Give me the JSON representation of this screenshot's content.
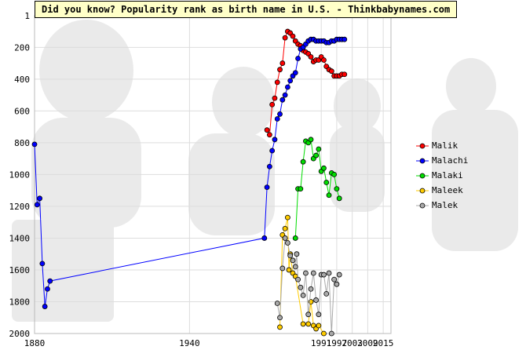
{
  "chart_data": {
    "type": "line",
    "title": "Did you know? Popularity rank as birth name in U.S. - Thinkbabynames.com",
    "xlabel": "",
    "ylabel": "",
    "xlim": [
      1880,
      2018
    ],
    "ylim": [
      2000,
      1
    ],
    "y_inverted": true,
    "grid": true,
    "x_ticks": [
      {
        "value": 1880,
        "label": "1880"
      },
      {
        "value": 1940,
        "label": "1940"
      },
      {
        "value": 1991,
        "label": "1991"
      },
      {
        "value": 1997,
        "label": "1997"
      },
      {
        "value": 2003,
        "label": "2003"
      },
      {
        "value": 2009,
        "label": "2009"
      },
      {
        "value": 2015,
        "label": "2015"
      }
    ],
    "y_ticks": [
      {
        "value": 1,
        "label": "1"
      },
      {
        "value": 200,
        "label": "200"
      },
      {
        "value": 400,
        "label": "400"
      },
      {
        "value": 600,
        "label": "600"
      },
      {
        "value": 800,
        "label": "800"
      },
      {
        "value": 1000,
        "label": "1000"
      },
      {
        "value": 1200,
        "label": "1200"
      },
      {
        "value": 1400,
        "label": "1400"
      },
      {
        "value": 1600,
        "label": "1600"
      },
      {
        "value": 1800,
        "label": "1800"
      },
      {
        "value": 2000,
        "label": "2000"
      }
    ],
    "legend_position": "right",
    "series": [
      {
        "name": "Malik",
        "color": "#ff0000",
        "points": [
          [
            1970,
            720
          ],
          [
            1971,
            750
          ],
          [
            1972,
            560
          ],
          [
            1973,
            520
          ],
          [
            1974,
            420
          ],
          [
            1975,
            340
          ],
          [
            1976,
            300
          ],
          [
            1977,
            140
          ],
          [
            1978,
            100
          ],
          [
            1979,
            110
          ],
          [
            1980,
            130
          ],
          [
            1981,
            160
          ],
          [
            1982,
            180
          ],
          [
            1983,
            190
          ],
          [
            1984,
            220
          ],
          [
            1985,
            230
          ],
          [
            1986,
            240
          ],
          [
            1987,
            260
          ],
          [
            1988,
            290
          ],
          [
            1989,
            280
          ],
          [
            1990,
            280
          ],
          [
            1991,
            260
          ],
          [
            1992,
            280
          ],
          [
            1993,
            320
          ],
          [
            1994,
            340
          ],
          [
            1995,
            350
          ],
          [
            1996,
            380
          ],
          [
            1997,
            380
          ],
          [
            1998,
            380
          ],
          [
            1999,
            370
          ],
          [
            2000,
            370
          ]
        ]
      },
      {
        "name": "Malachi",
        "color": "#0000ff",
        "points": [
          [
            1880,
            810
          ],
          [
            1881,
            1190
          ],
          [
            1882,
            1150
          ],
          [
            1883,
            1560
          ],
          [
            1884,
            1830
          ],
          [
            1885,
            1720
          ],
          [
            1886,
            1670
          ],
          [
            1969,
            1400
          ],
          [
            1970,
            1080
          ],
          [
            1971,
            950
          ],
          [
            1972,
            850
          ],
          [
            1973,
            780
          ],
          [
            1974,
            650
          ],
          [
            1975,
            620
          ],
          [
            1976,
            530
          ],
          [
            1977,
            500
          ],
          [
            1978,
            450
          ],
          [
            1979,
            410
          ],
          [
            1980,
            380
          ],
          [
            1981,
            360
          ],
          [
            1982,
            270
          ],
          [
            1983,
            210
          ],
          [
            1984,
            200
          ],
          [
            1985,
            180
          ],
          [
            1986,
            160
          ],
          [
            1987,
            150
          ],
          [
            1988,
            150
          ],
          [
            1989,
            160
          ],
          [
            1990,
            160
          ],
          [
            1991,
            160
          ],
          [
            1992,
            160
          ],
          [
            1993,
            170
          ],
          [
            1994,
            170
          ],
          [
            1995,
            160
          ],
          [
            1996,
            160
          ],
          [
            1997,
            150
          ],
          [
            1998,
            150
          ],
          [
            1999,
            150
          ],
          [
            2000,
            150
          ]
        ]
      },
      {
        "name": "Malaki",
        "color": "#00dd00",
        "points": [
          [
            1981,
            1400
          ],
          [
            1982,
            1090
          ],
          [
            1983,
            1090
          ],
          [
            1984,
            920
          ],
          [
            1985,
            790
          ],
          [
            1986,
            800
          ],
          [
            1987,
            780
          ],
          [
            1988,
            900
          ],
          [
            1989,
            880
          ],
          [
            1990,
            840
          ],
          [
            1991,
            980
          ],
          [
            1992,
            960
          ],
          [
            1993,
            1050
          ],
          [
            1994,
            1130
          ],
          [
            1995,
            990
          ],
          [
            1996,
            1000
          ],
          [
            1997,
            1090
          ],
          [
            1998,
            1150
          ]
        ]
      },
      {
        "name": "Maleek",
        "color": "#ffcc00",
        "points": [
          [
            1975,
            1960
          ],
          [
            1976,
            1380
          ],
          [
            1977,
            1340
          ],
          [
            1978,
            1270
          ],
          [
            1978.5,
            1600
          ],
          [
            1979,
            1500
          ],
          [
            1980,
            1620
          ],
          [
            1981,
            1640
          ],
          [
            1984,
            1940
          ],
          [
            1986,
            1940
          ],
          [
            1987,
            1800
          ],
          [
            1988,
            1950
          ],
          [
            1989,
            1970
          ],
          [
            1990,
            1950
          ],
          [
            1992,
            2000
          ]
        ]
      },
      {
        "name": "Malek",
        "color": "#aaaaaa",
        "points": [
          [
            1974,
            1810
          ],
          [
            1975,
            1900
          ],
          [
            1976,
            1590
          ],
          [
            1977,
            1400
          ],
          [
            1978,
            1430
          ],
          [
            1979,
            1510
          ],
          [
            1980,
            1540
          ],
          [
            1981,
            1580
          ],
          [
            1981.5,
            1500
          ],
          [
            1982,
            1660
          ],
          [
            1983,
            1710
          ],
          [
            1984,
            1760
          ],
          [
            1985,
            1620
          ],
          [
            1986,
            1880
          ],
          [
            1987,
            1720
          ],
          [
            1988,
            1620
          ],
          [
            1989,
            1790
          ],
          [
            1990,
            1880
          ],
          [
            1991,
            1630
          ],
          [
            1992,
            1630
          ],
          [
            1993,
            1750
          ],
          [
            1994,
            1620
          ],
          [
            1995,
            2000
          ],
          [
            1996,
            1660
          ],
          [
            1997,
            1690
          ],
          [
            1998,
            1630
          ]
        ]
      }
    ]
  }
}
